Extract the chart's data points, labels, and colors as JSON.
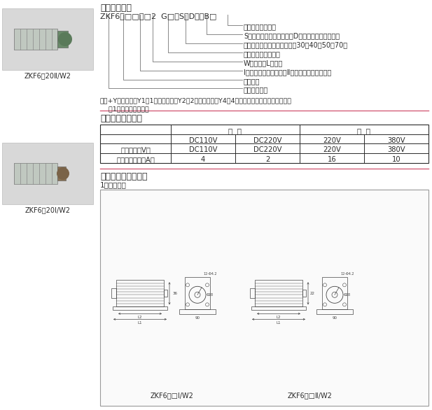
{
  "title_section3": "三、型号含义",
  "model_code": "ZKF6－□□／□2  G□－S（D）－B□",
  "annotations": [
    "拐臂（手柄）编号",
    "S：配隔离开关手动机构，D：配隔离开关电动机构",
    "轴的中心到安装底脚的距离（30、40、50、70）",
    "双极、每节二对触头",
    "W：卧式，L：立式",
    "I：带快分头（快分），Ⅱ：不带快分头（慢分）",
    "触头对数",
    "真空辅助开关"
  ],
  "note_line1": "注：+Y为带延时，Y1：1个延时触头、Y2：2个延时触头、Y4：4个延时触头，延时触头每节只能",
  "note_line2": "    有1个；快分无延时。",
  "title_section4": "四、主要技术参数",
  "table_header1": "直  流",
  "table_header2": "交  流",
  "table_col_headers": [
    "",
    "DC110V",
    "DC220V",
    "220V",
    "380V"
  ],
  "table_row1_label": "额定电压（V）",
  "table_row2_label": "最大开断电流（A）",
  "table_row1_vals": [
    "DC110V",
    "DC220V",
    "220V",
    "380V"
  ],
  "table_row2_vals": [
    "4",
    "2",
    "16",
    "10"
  ],
  "title_section5": "五、外型及安装尺寸",
  "install_label": "1、卧式安装",
  "img_label1": "ZKF6－□Ⅰ/W2",
  "img_label2": "ZKF6－□Ⅱ/W2",
  "photo_label_top": "ZKF6－20Ⅱ/W2",
  "photo_label_bot": "ZKF6－20Ⅰ/W2",
  "divider_color": "#d4607a",
  "bg_color": "#ffffff",
  "text_color": "#2a2a2a",
  "line_color": "#555555"
}
